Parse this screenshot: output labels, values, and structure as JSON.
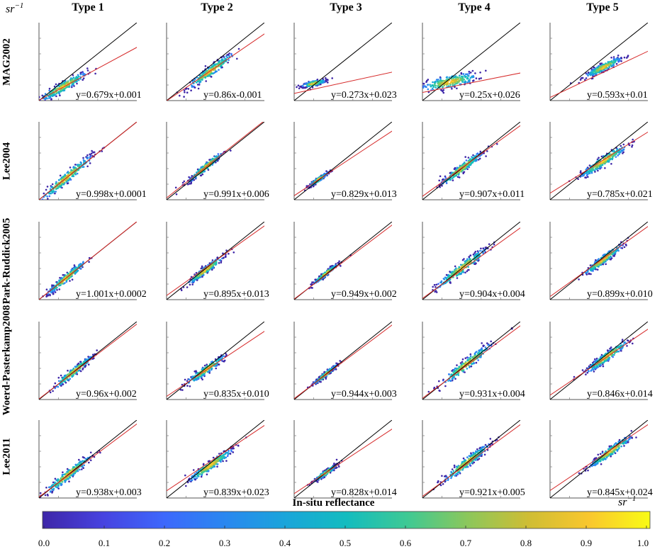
{
  "unit_label": "sr",
  "unit_exponent": "−1",
  "chart_data": {
    "type": "scatter",
    "title": "",
    "xlabel": "In-situ reflectance",
    "ylabel": "",
    "columns": [
      "Type 1",
      "Type 2",
      "Type 3",
      "Type 4",
      "Type 5"
    ],
    "rows": [
      "MAG2002",
      "Lee2004",
      "Park-Ruddick2005",
      "Woerd-Pasterkamp2008",
      "Lee2011"
    ],
    "panels": [
      [
        {
          "fit": "y=0.679x+0.001",
          "slope": 0.679,
          "intercept": 0.001,
          "cx": 0.25,
          "cy": 0.18,
          "spread": 0.12
        },
        {
          "fit": "y=0.86x-0.001",
          "slope": 0.86,
          "intercept": -0.001,
          "cx": 0.45,
          "cy": 0.38,
          "spread": 0.12
        },
        {
          "fit": "y=0.273x+0.023",
          "slope": 0.273,
          "intercept": 0.023,
          "cx": 0.2,
          "cy": 0.22,
          "spread": 0.06
        },
        {
          "fit": "y=0.25x+0.026",
          "slope": 0.25,
          "intercept": 0.026,
          "cx": 0.28,
          "cy": 0.24,
          "spread": 0.14
        },
        {
          "fit": "y=0.593x+0.01",
          "slope": 0.593,
          "intercept": 0.01,
          "cx": 0.55,
          "cy": 0.43,
          "spread": 0.09
        }
      ],
      [
        {
          "fit": "y=0.998x+0.0001",
          "slope": 0.998,
          "intercept": 0.0001,
          "cx": 0.28,
          "cy": 0.28,
          "spread": 0.13
        },
        {
          "fit": "y=0.991x+0.006",
          "slope": 0.991,
          "intercept": 0.006,
          "cx": 0.4,
          "cy": 0.42,
          "spread": 0.09
        },
        {
          "fit": "y=0.829x+0.013",
          "slope": 0.829,
          "intercept": 0.013,
          "cx": 0.25,
          "cy": 0.26,
          "spread": 0.05
        },
        {
          "fit": "y=0.907x+0.011",
          "slope": 0.907,
          "intercept": 0.011,
          "cx": 0.4,
          "cy": 0.4,
          "spread": 0.11
        },
        {
          "fit": "y=0.785x+0.021",
          "slope": 0.785,
          "intercept": 0.021,
          "cx": 0.55,
          "cy": 0.5,
          "spread": 0.12
        }
      ],
      [
        {
          "fit": "y=1.001x+0.0002",
          "slope": 1.001,
          "intercept": 0.0002,
          "cx": 0.28,
          "cy": 0.28,
          "spread": 0.1
        },
        {
          "fit": "y=0.895x+0.013",
          "slope": 0.895,
          "intercept": 0.013,
          "cx": 0.4,
          "cy": 0.38,
          "spread": 0.09
        },
        {
          "fit": "y=0.949x+0.002",
          "slope": 0.949,
          "intercept": 0.002,
          "cx": 0.32,
          "cy": 0.33,
          "spread": 0.06
        },
        {
          "fit": "y=0.904x+0.004",
          "slope": 0.904,
          "intercept": 0.004,
          "cx": 0.4,
          "cy": 0.4,
          "spread": 0.13
        },
        {
          "fit": "y=0.899x+0.010",
          "slope": 0.899,
          "intercept": 0.01,
          "cx": 0.55,
          "cy": 0.52,
          "spread": 0.1
        }
      ],
      [
        {
          "fit": "y=0.96x+0.002",
          "slope": 0.96,
          "intercept": 0.002,
          "cx": 0.35,
          "cy": 0.35,
          "spread": 0.1
        },
        {
          "fit": "y=0.835x+0.010",
          "slope": 0.835,
          "intercept": 0.01,
          "cx": 0.4,
          "cy": 0.38,
          "spread": 0.1
        },
        {
          "fit": "y=0.944x+0.003",
          "slope": 0.944,
          "intercept": 0.003,
          "cx": 0.32,
          "cy": 0.32,
          "spread": 0.06
        },
        {
          "fit": "y=0.931x+0.004",
          "slope": 0.931,
          "intercept": 0.004,
          "cx": 0.45,
          "cy": 0.45,
          "spread": 0.13
        },
        {
          "fit": "y=0.846x+0.014",
          "slope": 0.846,
          "intercept": 0.014,
          "cx": 0.58,
          "cy": 0.55,
          "spread": 0.11
        }
      ],
      [
        {
          "fit": "y=0.938x+0.003",
          "slope": 0.938,
          "intercept": 0.003,
          "cx": 0.3,
          "cy": 0.3,
          "spread": 0.12
        },
        {
          "fit": "y=0.839x+0.023",
          "slope": 0.839,
          "intercept": 0.023,
          "cx": 0.45,
          "cy": 0.42,
          "spread": 0.11
        },
        {
          "fit": "y=0.828x+0.014",
          "slope": 0.828,
          "intercept": 0.014,
          "cx": 0.32,
          "cy": 0.32,
          "spread": 0.06
        },
        {
          "fit": "y=0.921x+0.005",
          "slope": 0.921,
          "intercept": 0.005,
          "cx": 0.45,
          "cy": 0.45,
          "spread": 0.12
        },
        {
          "fit": "y=0.845x+0.024",
          "slope": 0.845,
          "intercept": 0.024,
          "cx": 0.62,
          "cy": 0.6,
          "spread": 0.11
        }
      ]
    ],
    "reference_line": "1:1",
    "colorbar": {
      "ticks": [
        "0.0",
        "0.1",
        "0.2",
        "0.3",
        "0.4",
        "0.5",
        "0.6",
        "0.7",
        "0.8",
        "0.9",
        "1.0"
      ],
      "min": 0,
      "max": 1,
      "colors": [
        "#3e26a8",
        "#4743e0",
        "#3d68fc",
        "#2a87f0",
        "#1aa5da",
        "#13bcbf",
        "#3ec994",
        "#8cc75b",
        "#cfbd34",
        "#f9c72e",
        "#f9fb15"
      ]
    }
  }
}
